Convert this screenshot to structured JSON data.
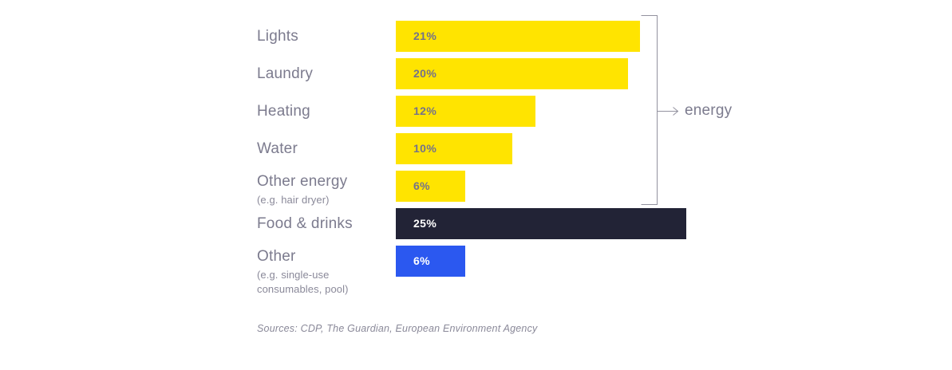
{
  "chart_data": {
    "type": "bar",
    "orientation": "horizontal",
    "xlim": [
      0,
      25
    ],
    "unit": "%",
    "grid": false,
    "legend": false,
    "rows": [
      {
        "label": "Lights",
        "sublabel": "",
        "value": 21,
        "value_label": "21%",
        "color": "yellow",
        "group": "energy"
      },
      {
        "label": "Laundry",
        "sublabel": "",
        "value": 20,
        "value_label": "20%",
        "color": "yellow",
        "group": "energy"
      },
      {
        "label": "Heating",
        "sublabel": "",
        "value": 12,
        "value_label": "12%",
        "color": "yellow",
        "group": "energy"
      },
      {
        "label": "Water",
        "sublabel": "",
        "value": 10,
        "value_label": "10%",
        "color": "yellow",
        "group": "energy"
      },
      {
        "label": "Other energy",
        "sublabel": "(e.g. hair dryer)",
        "value": 6,
        "value_label": "6%",
        "color": "yellow",
        "group": "energy"
      },
      {
        "label": "Food & drinks",
        "sublabel": "",
        "value": 25,
        "value_label": "25%",
        "color": "dark",
        "group": ""
      },
      {
        "label": "Other",
        "sublabel": "(e.g. single-use consumables, pool)",
        "value": 6,
        "value_label": "6%",
        "color": "blue",
        "group": ""
      }
    ],
    "group_label": "energy",
    "colors": {
      "yellow": "#FFE400",
      "dark": "#222336",
      "blue": "#2B58F0",
      "label_text": "#7C7B8E",
      "value_on_yellow": "#74728A",
      "value_on_dark": "#FFFFFF",
      "bracket": "#93929F"
    },
    "source": "Sources: CDP, The Guardian, European Environment Agency"
  }
}
